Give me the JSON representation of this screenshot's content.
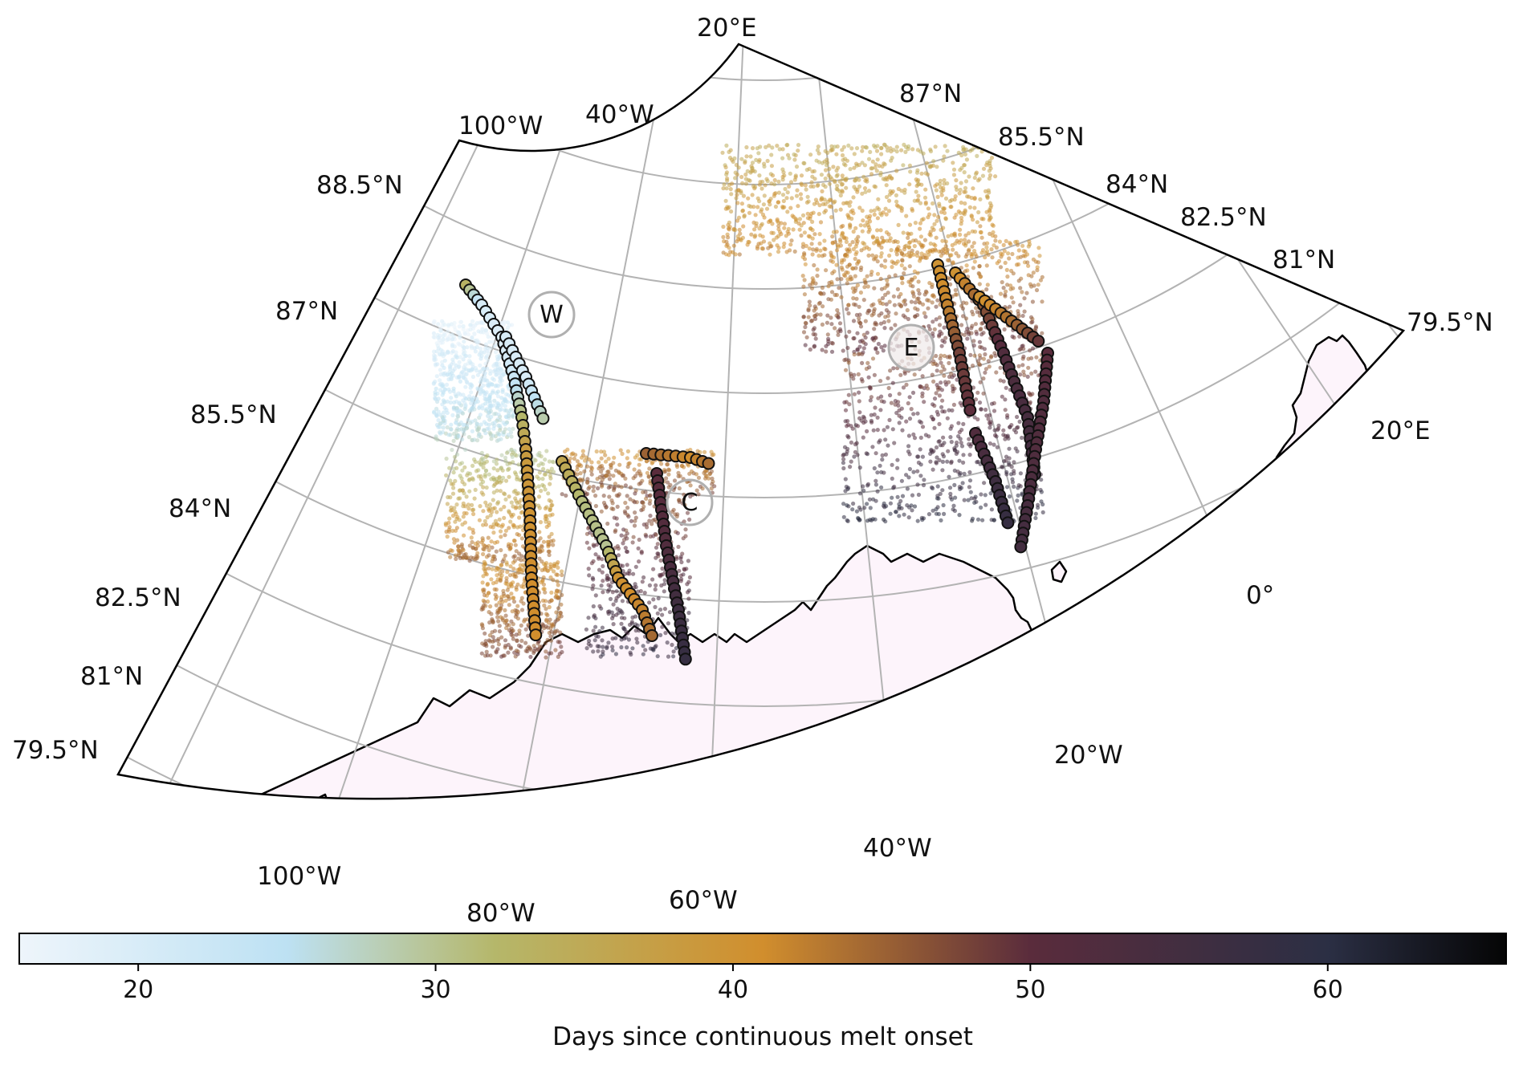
{
  "map": {
    "parallels": [
      "79.5°N",
      "81°N",
      "82.5°N",
      "84°N",
      "85.5°N",
      "87°N",
      "88.5°N"
    ],
    "meridians_top": [
      "100°W",
      "40°W",
      "20°E"
    ],
    "meridians_bottom": [
      "100°W",
      "80°W",
      "60°W",
      "40°W",
      "20°W",
      "0°",
      "20°E"
    ],
    "regions": [
      {
        "label": "W"
      },
      {
        "label": "C"
      },
      {
        "label": "E"
      }
    ],
    "colors": {
      "land": "#fdf4fb",
      "coast": "#000000",
      "grid": "#b3b3b3",
      "ring": "#b0b0b0"
    }
  },
  "colorbar": {
    "label": "Days since continuous melt onset",
    "min": 16,
    "max": 66,
    "ticks": [
      20,
      30,
      40,
      50,
      60
    ],
    "stops": [
      {
        "value": 16,
        "color": "#eef5fb"
      },
      {
        "value": 25,
        "color": "#bde1f3"
      },
      {
        "value": 32,
        "color": "#b5b76a"
      },
      {
        "value": 41,
        "color": "#d18e2d"
      },
      {
        "value": 50,
        "color": "#5a2c3c"
      },
      {
        "value": 60,
        "color": "#2b2f44"
      },
      {
        "value": 66,
        "color": "#050505"
      }
    ]
  }
}
